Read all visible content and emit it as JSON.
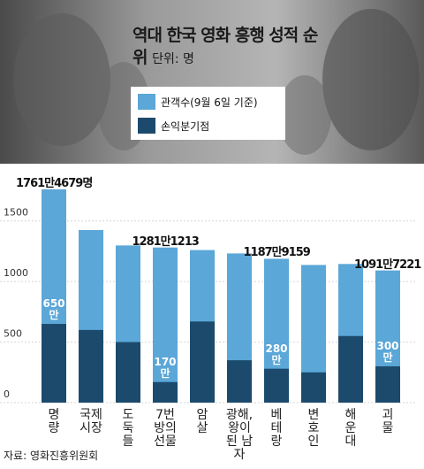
{
  "chart_data": {
    "type": "bar",
    "title": "역대 한국 영화 흥행 성적 순위",
    "unit": "단위: 명",
    "source": "자료: 영화진흥위원회",
    "categories": [
      "명량",
      "국제시장",
      "도둑들",
      "7번방의 선물",
      "암살",
      "광해, 왕이 된 남자",
      "베테랑",
      "변호인",
      "해운대",
      "괴물"
    ],
    "series": [
      {
        "name": "관객수(9월 6일 기준)",
        "color": "#5ba7d8",
        "values": [
          1761.4679,
          1425,
          1298,
          1281.1213,
          1260,
          1232,
          1187.9159,
          1137,
          1145,
          1091.7221
        ],
        "value_labels": [
          "1761만4679명",
          null,
          null,
          "1281만1213",
          null,
          null,
          "1187만9159",
          null,
          null,
          "1091만7221"
        ]
      },
      {
        "name": "손익분기점",
        "color": "#1c4a6d",
        "values": [
          650,
          600,
          500,
          170,
          670,
          350,
          280,
          250,
          550,
          300
        ],
        "value_labels": [
          "650만",
          null,
          null,
          "170만",
          null,
          null,
          "280만",
          null,
          null,
          "300만"
        ]
      }
    ],
    "ylim": [
      0,
      1900
    ],
    "yticks": [
      0,
      500,
      1000,
      1500
    ],
    "grid": true
  }
}
